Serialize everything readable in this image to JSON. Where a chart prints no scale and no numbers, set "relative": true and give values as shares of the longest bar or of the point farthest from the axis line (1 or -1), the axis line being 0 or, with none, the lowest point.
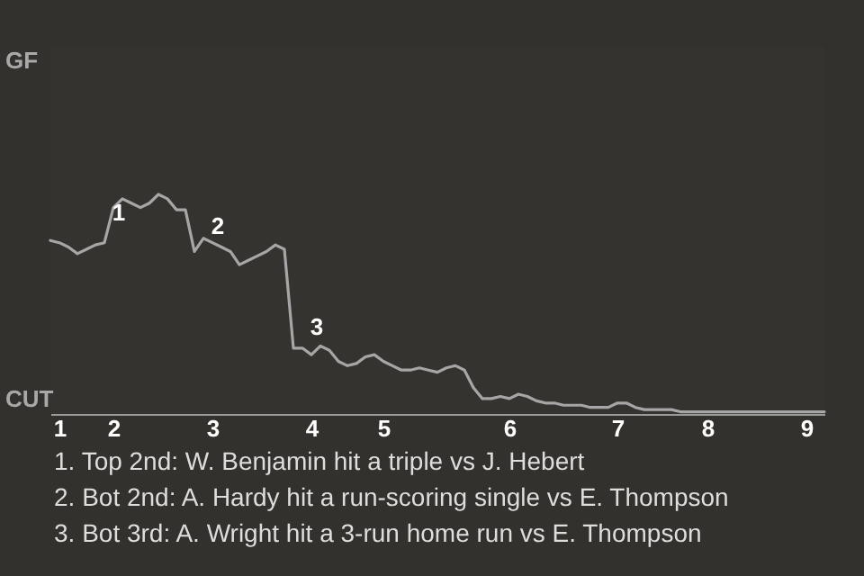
{
  "chart_data": {
    "type": "line",
    "relative": true,
    "categories": [
      null,
      "1",
      null,
      null,
      null,
      null,
      null,
      "2",
      null,
      null,
      null,
      null,
      null,
      null,
      null,
      null,
      null,
      null,
      "3",
      null,
      null,
      null,
      null,
      null,
      null,
      null,
      null,
      null,
      null,
      "4",
      null,
      null,
      null,
      null,
      null,
      null,
      null,
      "5",
      null,
      null,
      null,
      null,
      null,
      null,
      null,
      null,
      null,
      null,
      null,
      null,
      null,
      "6",
      null,
      null,
      null,
      null,
      null,
      null,
      null,
      null,
      null,
      null,
      null,
      "7",
      null,
      null,
      null,
      null,
      null,
      null,
      null,
      null,
      null,
      "8",
      null,
      null,
      null,
      null,
      null,
      null,
      null,
      null,
      null,
      null,
      "9",
      null,
      null
    ],
    "series": [
      {
        "color": "#a6a6a6",
        "values": [
          0.79,
          0.78,
          0.76,
          0.73,
          0.75,
          0.77,
          0.78,
          0.94,
          0.98,
          0.96,
          0.94,
          0.96,
          1,
          0.98,
          0.93,
          0.93,
          0.74,
          0.8,
          0.78,
          0.76,
          0.74,
          0.68,
          0.7,
          0.72,
          0.74,
          0.77,
          0.75,
          0.3,
          0.3,
          0.27,
          0.31,
          0.29,
          0.24,
          0.22,
          0.23,
          0.26,
          0.27,
          0.24,
          0.22,
          0.2,
          0.2,
          0.21,
          0.2,
          0.19,
          0.21,
          0.22,
          0.2,
          0.12,
          0.07,
          0.07,
          0.08,
          0.07,
          0.09,
          0.08,
          0.06,
          0.05,
          0.05,
          0.04,
          0.04,
          0.04,
          0.03,
          0.03,
          0.03,
          0.05,
          0.05,
          0.03,
          0.02,
          0.02,
          0.02,
          0.02,
          0.01,
          0.01,
          0.01,
          0.01,
          0.01,
          0.01,
          0.01,
          0.01,
          0.01,
          0.01,
          0.01,
          0.01,
          0.01,
          0.01,
          0.01,
          0.01,
          0.01
        ]
      }
    ],
    "annotations": [
      "GF",
      "CUT",
      {
        "text": "1",
        "x": "2",
        "y": 0.83
      },
      {
        "text": "2",
        "x": "3",
        "y": 0.77
      },
      {
        "text": "3",
        "x": "4",
        "y": 0.31
      },
      "1. Top 2nd: W. Benjamin hit a triple vs J. Hebert",
      "2. Bot 2nd: A. Hardy hit a run-scoring single vs E. Thompson",
      "3. Bot 3rd: A. Wright hit a 3-run home run vs E. Thompson"
    ]
  }
}
